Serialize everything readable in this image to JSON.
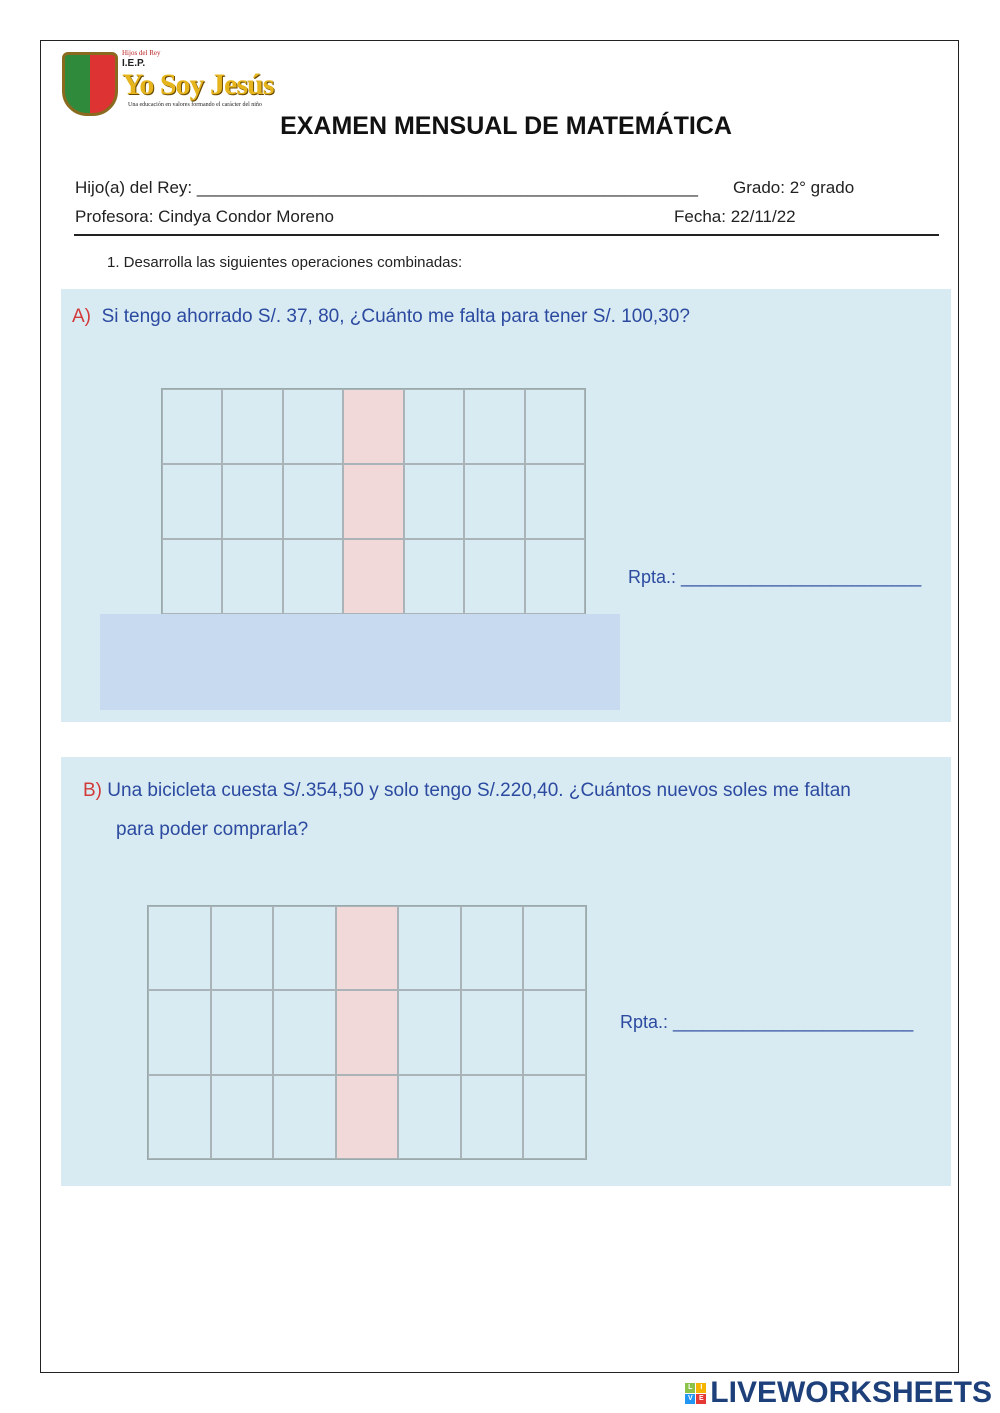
{
  "logo": {
    "motto_top": "Hijos del Rey",
    "school_type": "I.E.P.",
    "school_name": "Yo Soy Jesús",
    "tagline": "Una educación en valores formando el carácter del niño"
  },
  "title": "EXAMEN MENSUAL DE MATEMÁTICA",
  "header": {
    "student_label": "Hijo(a) del Rey: _____________________________________________________",
    "grade": "Grado: 2° grado",
    "teacher": "Profesora: Cindya Condor Moreno",
    "date": "Fecha: 22/11/22"
  },
  "instruction": "1.   Desarrolla las siguientes operaciones combinadas:",
  "questions": [
    {
      "letter": "A)",
      "text": "Si tengo ahorrado S/. 37, 80, ¿Cuánto me falta para tener S/. 100,30?",
      "answer_label": "Rpta.: ________________________"
    },
    {
      "letter": "B)",
      "text": "Una bicicleta cuesta S/.354,50 y solo tengo S/.220,40. ¿Cuántos nuevos soles me faltan",
      "text2": "para poder comprarla?",
      "answer_label": "Rpta.: ________________________"
    }
  ],
  "colors": {
    "panel": "#d9ebf2",
    "highlight_column": "#f2d9d9",
    "answer_box": "#c7daf0",
    "question_text": "#2b4aa0",
    "letter": "#d23a3a"
  },
  "footer": {
    "brand": "LIVEWORKSHEETS",
    "badge": [
      "L",
      "I",
      "V",
      "E"
    ]
  }
}
